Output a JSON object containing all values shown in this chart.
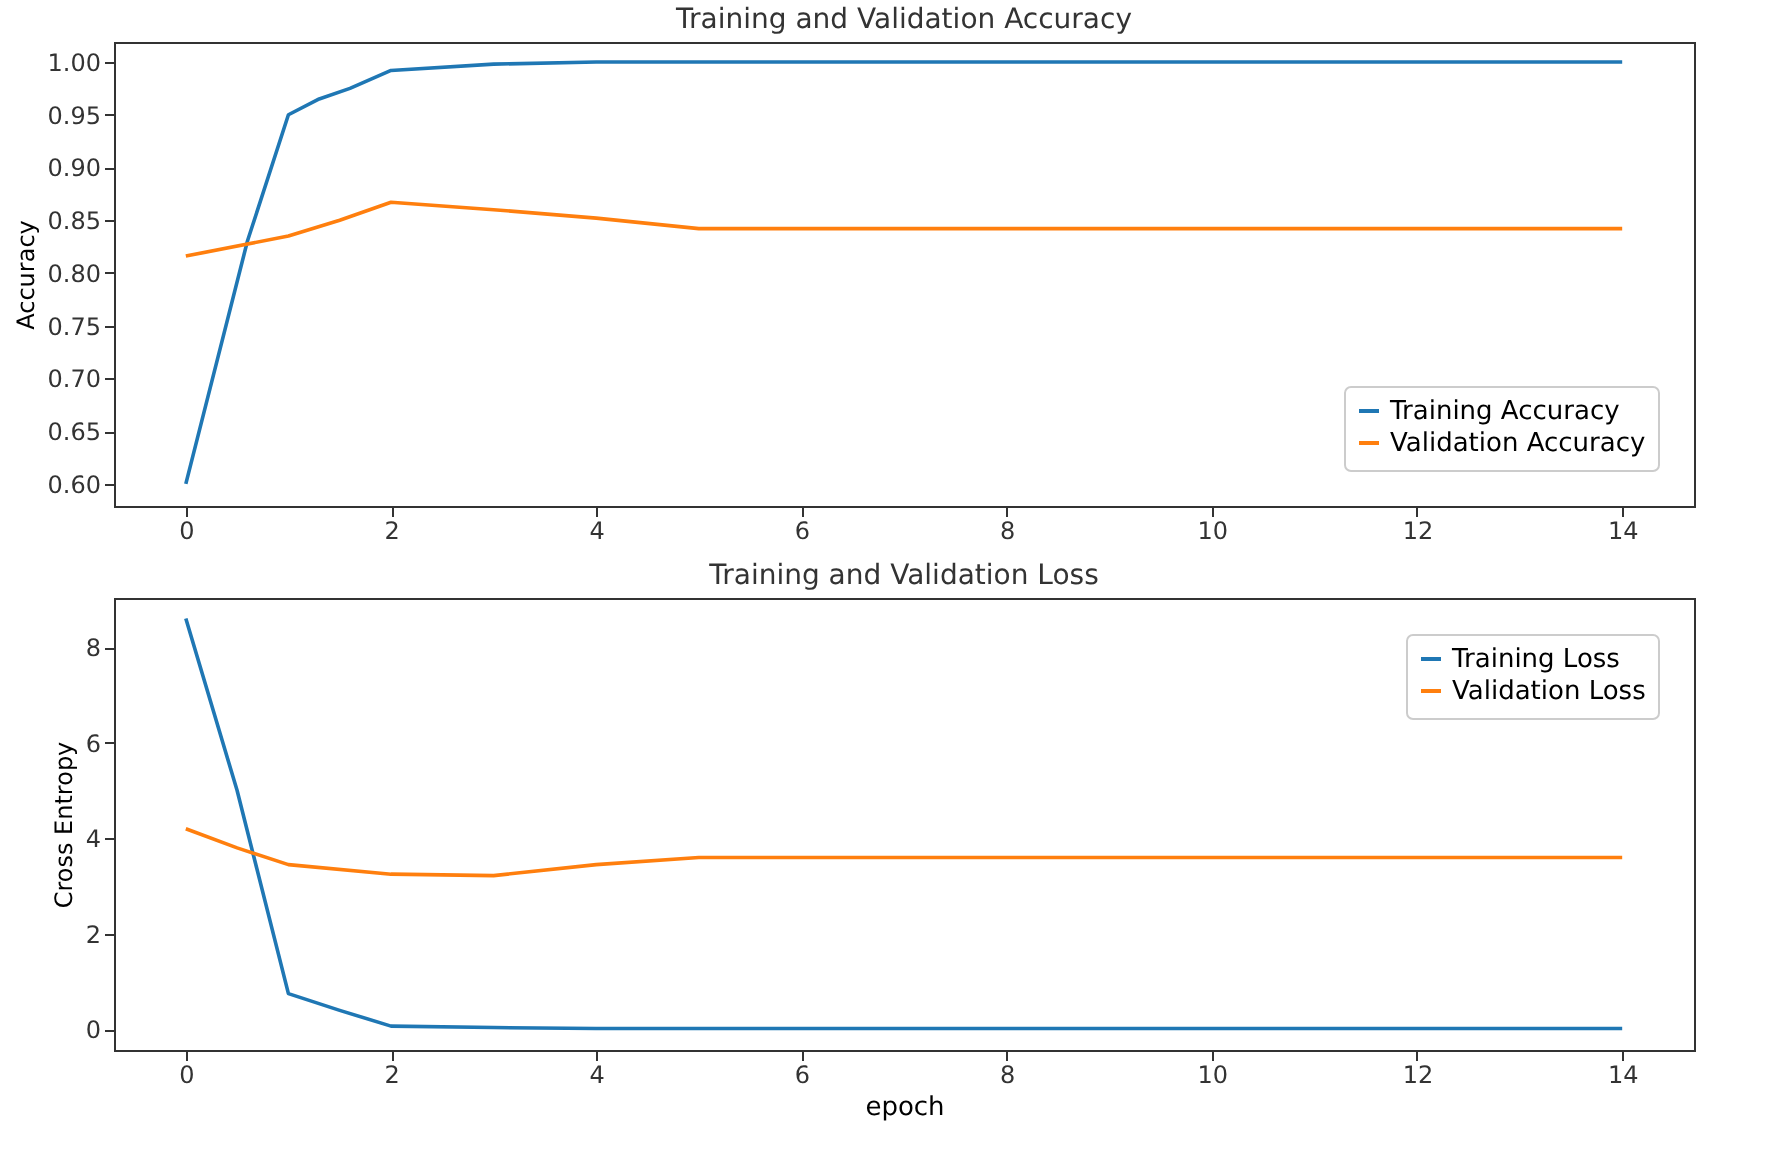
{
  "chart_data": [
    {
      "type": "line",
      "title": "Training and Validation Accuracy",
      "ylabel": "Accuracy",
      "xlim": [
        -0.7,
        14.7
      ],
      "xticks": [
        0,
        2,
        4,
        6,
        8,
        10,
        12,
        14
      ],
      "ylim": [
        0.579,
        1.019
      ],
      "yticks": [
        {
          "value": 0.6,
          "label": "0.60"
        },
        0.65,
        {
          "value": 0.7,
          "label": "0.70"
        },
        0.75,
        {
          "value": 0.8,
          "label": "0.80"
        },
        0.85,
        {
          "value": 0.9,
          "label": "0.90"
        },
        0.95,
        {
          "value": 1.0,
          "label": "1.00"
        }
      ],
      "grid": false,
      "legend": "bottom right",
      "series": [
        {
          "name": "Training Accuracy",
          "color": "#1f77b4",
          "x": [
            0,
            0.6,
            1,
            1.3,
            1.6,
            2,
            3,
            4,
            14
          ],
          "values": [
            0.6,
            0.83,
            0.95,
            0.965,
            0.975,
            0.992,
            0.998,
            1.0,
            1.0
          ]
        },
        {
          "name": "Validation Accuracy",
          "color": "#ff7f0e",
          "x": [
            0,
            1,
            1.5,
            2,
            3,
            4,
            5,
            14
          ],
          "values": [
            0.816,
            0.835,
            0.85,
            0.867,
            0.86,
            0.852,
            0.842,
            0.842
          ]
        }
      ]
    },
    {
      "type": "line",
      "title": "Training and Validation Loss",
      "xlabel": "epoch",
      "ylabel": "Cross Entropy",
      "xlim": [
        -0.7,
        14.7
      ],
      "xticks": [
        0,
        2,
        4,
        6,
        8,
        10,
        12,
        14
      ],
      "ylim": [
        -0.43,
        9.03
      ],
      "yticks": [
        0,
        2,
        4,
        6,
        8
      ],
      "grid": false,
      "legend": "top right",
      "series": [
        {
          "name": "Training Loss",
          "color": "#1f77b4",
          "x": [
            0,
            0.5,
            1,
            1.5,
            2,
            3,
            4,
            14
          ],
          "values": [
            8.6,
            5.0,
            0.75,
            0.4,
            0.07,
            0.04,
            0.02,
            0.02
          ]
        },
        {
          "name": "Validation Loss",
          "color": "#ff7f0e",
          "x": [
            0,
            0.5,
            1,
            2,
            3,
            4,
            5,
            14
          ],
          "values": [
            4.2,
            3.8,
            3.45,
            3.25,
            3.22,
            3.45,
            3.6,
            3.6
          ]
        }
      ]
    }
  ]
}
